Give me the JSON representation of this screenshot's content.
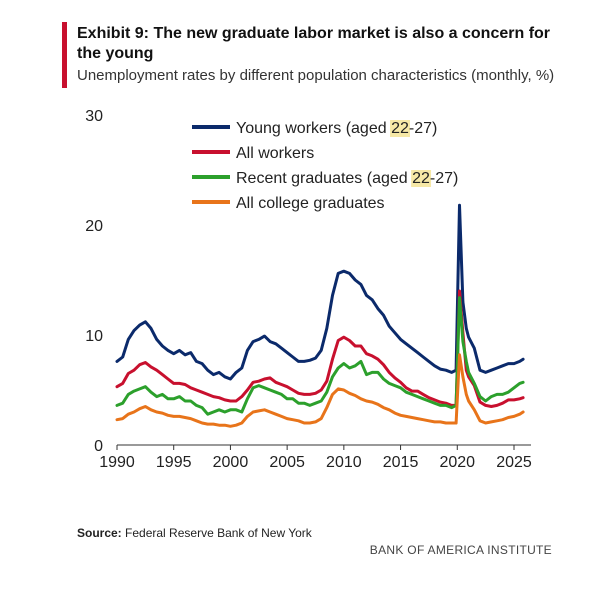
{
  "header": {
    "title": "Exhibit 9: The new graduate labor market is also a concern for the young",
    "subtitle": "Unemployment rates by different population characteristics (monthly, %)"
  },
  "footer": {
    "source_label": "Source:",
    "source_text": "Federal Reserve Bank of New York",
    "brand": "BANK OF AMERICA INSTITUTE"
  },
  "chart_data": {
    "type": "line",
    "title": "",
    "xlabel": "",
    "ylabel": "",
    "xlim": [
      1990,
      2026.5
    ],
    "ylim": [
      0,
      30
    ],
    "x_ticks": [
      1990,
      1995,
      2000,
      2005,
      2010,
      2015,
      2020,
      2025
    ],
    "y_ticks": [
      0,
      10,
      20,
      30
    ],
    "grid": false,
    "legend_position": "top-center",
    "legend_highlight": "22",
    "series": [
      {
        "name": "Young workers (aged 22-27)",
        "color": "#0b2a6b",
        "points": [
          [
            1990,
            7.6
          ],
          [
            1990.5,
            8.0
          ],
          [
            1991,
            9.6
          ],
          [
            1991.5,
            10.4
          ],
          [
            1992,
            10.9
          ],
          [
            1992.5,
            11.2
          ],
          [
            1993,
            10.6
          ],
          [
            1993.5,
            9.6
          ],
          [
            1994,
            9.0
          ],
          [
            1994.5,
            8.6
          ],
          [
            1995,
            8.3
          ],
          [
            1995.5,
            8.6
          ],
          [
            1996,
            8.2
          ],
          [
            1996.5,
            8.4
          ],
          [
            1997,
            7.6
          ],
          [
            1997.5,
            7.4
          ],
          [
            1998,
            6.8
          ],
          [
            1998.5,
            6.4
          ],
          [
            1999,
            6.6
          ],
          [
            1999.5,
            6.2
          ],
          [
            2000,
            6.0
          ],
          [
            2000.5,
            6.6
          ],
          [
            2001,
            7.0
          ],
          [
            2001.5,
            8.6
          ],
          [
            2002,
            9.4
          ],
          [
            2002.5,
            9.6
          ],
          [
            2003,
            9.9
          ],
          [
            2003.5,
            9.4
          ],
          [
            2004,
            9.2
          ],
          [
            2004.5,
            8.8
          ],
          [
            2005,
            8.4
          ],
          [
            2005.5,
            8.0
          ],
          [
            2006,
            7.6
          ],
          [
            2006.5,
            7.6
          ],
          [
            2007,
            7.7
          ],
          [
            2007.5,
            7.9
          ],
          [
            2008,
            8.6
          ],
          [
            2008.5,
            10.6
          ],
          [
            2009,
            13.6
          ],
          [
            2009.5,
            15.6
          ],
          [
            2010,
            15.8
          ],
          [
            2010.5,
            15.6
          ],
          [
            2011,
            15.0
          ],
          [
            2011.5,
            14.6
          ],
          [
            2012,
            13.6
          ],
          [
            2012.5,
            13.2
          ],
          [
            2013,
            12.4
          ],
          [
            2013.5,
            11.8
          ],
          [
            2014,
            10.8
          ],
          [
            2014.5,
            10.2
          ],
          [
            2015,
            9.6
          ],
          [
            2015.5,
            9.2
          ],
          [
            2016,
            8.8
          ],
          [
            2016.5,
            8.4
          ],
          [
            2017,
            8.0
          ],
          [
            2017.5,
            7.6
          ],
          [
            2018,
            7.2
          ],
          [
            2018.5,
            6.9
          ],
          [
            2019,
            6.8
          ],
          [
            2019.5,
            6.6
          ],
          [
            2019.9,
            6.8
          ],
          [
            2020.2,
            21.8
          ],
          [
            2020.5,
            13.0
          ],
          [
            2020.8,
            10.6
          ],
          [
            2021,
            9.8
          ],
          [
            2021.5,
            8.8
          ],
          [
            2022,
            6.8
          ],
          [
            2022.5,
            6.6
          ],
          [
            2023,
            6.8
          ],
          [
            2023.5,
            7.0
          ],
          [
            2024,
            7.2
          ],
          [
            2024.5,
            7.4
          ],
          [
            2025,
            7.4
          ],
          [
            2025.5,
            7.6
          ],
          [
            2025.8,
            7.8
          ]
        ]
      },
      {
        "name": "All workers",
        "color": "#c8102e",
        "points": [
          [
            1990,
            5.3
          ],
          [
            1990.5,
            5.6
          ],
          [
            1991,
            6.5
          ],
          [
            1991.5,
            6.8
          ],
          [
            1992,
            7.3
          ],
          [
            1992.5,
            7.5
          ],
          [
            1993,
            7.1
          ],
          [
            1993.5,
            6.8
          ],
          [
            1994,
            6.4
          ],
          [
            1994.5,
            6.0
          ],
          [
            1995,
            5.6
          ],
          [
            1995.5,
            5.6
          ],
          [
            1996,
            5.5
          ],
          [
            1996.5,
            5.2
          ],
          [
            1997,
            5.0
          ],
          [
            1997.5,
            4.8
          ],
          [
            1998,
            4.6
          ],
          [
            1998.5,
            4.4
          ],
          [
            1999,
            4.3
          ],
          [
            1999.5,
            4.1
          ],
          [
            2000,
            4.0
          ],
          [
            2000.5,
            4.0
          ],
          [
            2001,
            4.4
          ],
          [
            2001.5,
            5.0
          ],
          [
            2002,
            5.7
          ],
          [
            2002.5,
            5.8
          ],
          [
            2003,
            6.0
          ],
          [
            2003.5,
            6.1
          ],
          [
            2004,
            5.7
          ],
          [
            2004.5,
            5.5
          ],
          [
            2005,
            5.3
          ],
          [
            2005.5,
            5.0
          ],
          [
            2006,
            4.7
          ],
          [
            2006.5,
            4.6
          ],
          [
            2007,
            4.6
          ],
          [
            2007.5,
            4.7
          ],
          [
            2008,
            5.0
          ],
          [
            2008.5,
            5.8
          ],
          [
            2009,
            7.8
          ],
          [
            2009.5,
            9.5
          ],
          [
            2010,
            9.8
          ],
          [
            2010.5,
            9.5
          ],
          [
            2011,
            9.0
          ],
          [
            2011.5,
            9.0
          ],
          [
            2012,
            8.3
          ],
          [
            2012.5,
            8.1
          ],
          [
            2013,
            7.8
          ],
          [
            2013.5,
            7.3
          ],
          [
            2014,
            6.6
          ],
          [
            2014.5,
            6.1
          ],
          [
            2015,
            5.7
          ],
          [
            2015.5,
            5.2
          ],
          [
            2016,
            4.9
          ],
          [
            2016.5,
            4.9
          ],
          [
            2017,
            4.6
          ],
          [
            2017.5,
            4.3
          ],
          [
            2018,
            4.1
          ],
          [
            2018.5,
            3.9
          ],
          [
            2019,
            3.8
          ],
          [
            2019.5,
            3.6
          ],
          [
            2019.9,
            3.6
          ],
          [
            2020.2,
            14.0
          ],
          [
            2020.5,
            10.2
          ],
          [
            2020.8,
            6.8
          ],
          [
            2021,
            6.2
          ],
          [
            2021.5,
            5.4
          ],
          [
            2022,
            3.9
          ],
          [
            2022.5,
            3.6
          ],
          [
            2023,
            3.5
          ],
          [
            2023.5,
            3.6
          ],
          [
            2024,
            3.8
          ],
          [
            2024.5,
            4.1
          ],
          [
            2025,
            4.1
          ],
          [
            2025.5,
            4.2
          ],
          [
            2025.8,
            4.3
          ]
        ]
      },
      {
        "name": "Recent graduates (aged 22-27)",
        "color": "#2ca02c",
        "points": [
          [
            1990,
            3.6
          ],
          [
            1990.5,
            3.8
          ],
          [
            1991,
            4.6
          ],
          [
            1991.5,
            4.9
          ],
          [
            1992,
            5.1
          ],
          [
            1992.5,
            5.3
          ],
          [
            1993,
            4.8
          ],
          [
            1993.5,
            4.4
          ],
          [
            1994,
            4.6
          ],
          [
            1994.5,
            4.2
          ],
          [
            1995,
            4.2
          ],
          [
            1995.5,
            4.4
          ],
          [
            1996,
            4.0
          ],
          [
            1996.5,
            4.0
          ],
          [
            1997,
            3.6
          ],
          [
            1997.5,
            3.4
          ],
          [
            1998,
            2.8
          ],
          [
            1998.5,
            3.0
          ],
          [
            1999,
            3.2
          ],
          [
            1999.5,
            3.0
          ],
          [
            2000,
            3.2
          ],
          [
            2000.5,
            3.2
          ],
          [
            2001,
            3.0
          ],
          [
            2001.5,
            4.2
          ],
          [
            2002,
            5.2
          ],
          [
            2002.5,
            5.4
          ],
          [
            2003,
            5.2
          ],
          [
            2003.5,
            5.0
          ],
          [
            2004,
            4.8
          ],
          [
            2004.5,
            4.6
          ],
          [
            2005,
            4.2
          ],
          [
            2005.5,
            4.2
          ],
          [
            2006,
            3.8
          ],
          [
            2006.5,
            3.8
          ],
          [
            2007,
            3.6
          ],
          [
            2007.5,
            3.8
          ],
          [
            2008,
            4.0
          ],
          [
            2008.5,
            4.8
          ],
          [
            2009,
            6.2
          ],
          [
            2009.5,
            7.0
          ],
          [
            2010,
            7.4
          ],
          [
            2010.5,
            7.0
          ],
          [
            2011,
            7.2
          ],
          [
            2011.5,
            7.6
          ],
          [
            2012,
            6.4
          ],
          [
            2012.5,
            6.6
          ],
          [
            2013,
            6.6
          ],
          [
            2013.5,
            6.0
          ],
          [
            2014,
            5.6
          ],
          [
            2014.5,
            5.4
          ],
          [
            2015,
            5.2
          ],
          [
            2015.5,
            4.8
          ],
          [
            2016,
            4.6
          ],
          [
            2016.5,
            4.4
          ],
          [
            2017,
            4.2
          ],
          [
            2017.5,
            4.0
          ],
          [
            2018,
            3.8
          ],
          [
            2018.5,
            3.6
          ],
          [
            2019,
            3.6
          ],
          [
            2019.5,
            3.4
          ],
          [
            2019.9,
            3.6
          ],
          [
            2020.2,
            13.4
          ],
          [
            2020.5,
            9.4
          ],
          [
            2020.8,
            7.6
          ],
          [
            2021,
            6.6
          ],
          [
            2021.5,
            5.6
          ],
          [
            2022,
            4.4
          ],
          [
            2022.5,
            4.0
          ],
          [
            2023,
            4.4
          ],
          [
            2023.5,
            4.6
          ],
          [
            2024,
            4.6
          ],
          [
            2024.5,
            4.8
          ],
          [
            2025,
            5.2
          ],
          [
            2025.5,
            5.6
          ],
          [
            2025.8,
            5.7
          ]
        ]
      },
      {
        "name": "All college graduates",
        "color": "#e8741a",
        "points": [
          [
            1990,
            2.3
          ],
          [
            1990.5,
            2.4
          ],
          [
            1991,
            2.8
          ],
          [
            1991.5,
            3.0
          ],
          [
            1992,
            3.3
          ],
          [
            1992.5,
            3.5
          ],
          [
            1993,
            3.2
          ],
          [
            1993.5,
            3.0
          ],
          [
            1994,
            2.9
          ],
          [
            1994.5,
            2.7
          ],
          [
            1995,
            2.6
          ],
          [
            1995.5,
            2.6
          ],
          [
            1996,
            2.5
          ],
          [
            1996.5,
            2.4
          ],
          [
            1997,
            2.2
          ],
          [
            1997.5,
            2.0
          ],
          [
            1998,
            1.9
          ],
          [
            1998.5,
            1.9
          ],
          [
            1999,
            1.8
          ],
          [
            1999.5,
            1.8
          ],
          [
            2000,
            1.7
          ],
          [
            2000.5,
            1.8
          ],
          [
            2001,
            2.0
          ],
          [
            2001.5,
            2.6
          ],
          [
            2002,
            3.0
          ],
          [
            2002.5,
            3.1
          ],
          [
            2003,
            3.2
          ],
          [
            2003.5,
            3.0
          ],
          [
            2004,
            2.8
          ],
          [
            2004.5,
            2.6
          ],
          [
            2005,
            2.4
          ],
          [
            2005.5,
            2.3
          ],
          [
            2006,
            2.2
          ],
          [
            2006.5,
            2.0
          ],
          [
            2007,
            2.0
          ],
          [
            2007.5,
            2.1
          ],
          [
            2008,
            2.4
          ],
          [
            2008.5,
            3.4
          ],
          [
            2009,
            4.6
          ],
          [
            2009.5,
            5.1
          ],
          [
            2010,
            5.0
          ],
          [
            2010.5,
            4.7
          ],
          [
            2011,
            4.5
          ],
          [
            2011.5,
            4.2
          ],
          [
            2012,
            4.0
          ],
          [
            2012.5,
            3.9
          ],
          [
            2013,
            3.7
          ],
          [
            2013.5,
            3.4
          ],
          [
            2014,
            3.2
          ],
          [
            2014.5,
            2.9
          ],
          [
            2015,
            2.7
          ],
          [
            2015.5,
            2.6
          ],
          [
            2016,
            2.5
          ],
          [
            2016.5,
            2.4
          ],
          [
            2017,
            2.3
          ],
          [
            2017.5,
            2.2
          ],
          [
            2018,
            2.1
          ],
          [
            2018.5,
            2.1
          ],
          [
            2019,
            2.0
          ],
          [
            2019.5,
            2.0
          ],
          [
            2019.9,
            2.0
          ],
          [
            2020.2,
            8.2
          ],
          [
            2020.5,
            6.2
          ],
          [
            2020.8,
            4.6
          ],
          [
            2021,
            4.0
          ],
          [
            2021.5,
            3.2
          ],
          [
            2022,
            2.2
          ],
          [
            2022.5,
            2.0
          ],
          [
            2023,
            2.1
          ],
          [
            2023.5,
            2.2
          ],
          [
            2024,
            2.3
          ],
          [
            2024.5,
            2.5
          ],
          [
            2025,
            2.6
          ],
          [
            2025.5,
            2.8
          ],
          [
            2025.8,
            3.0
          ]
        ]
      }
    ]
  }
}
